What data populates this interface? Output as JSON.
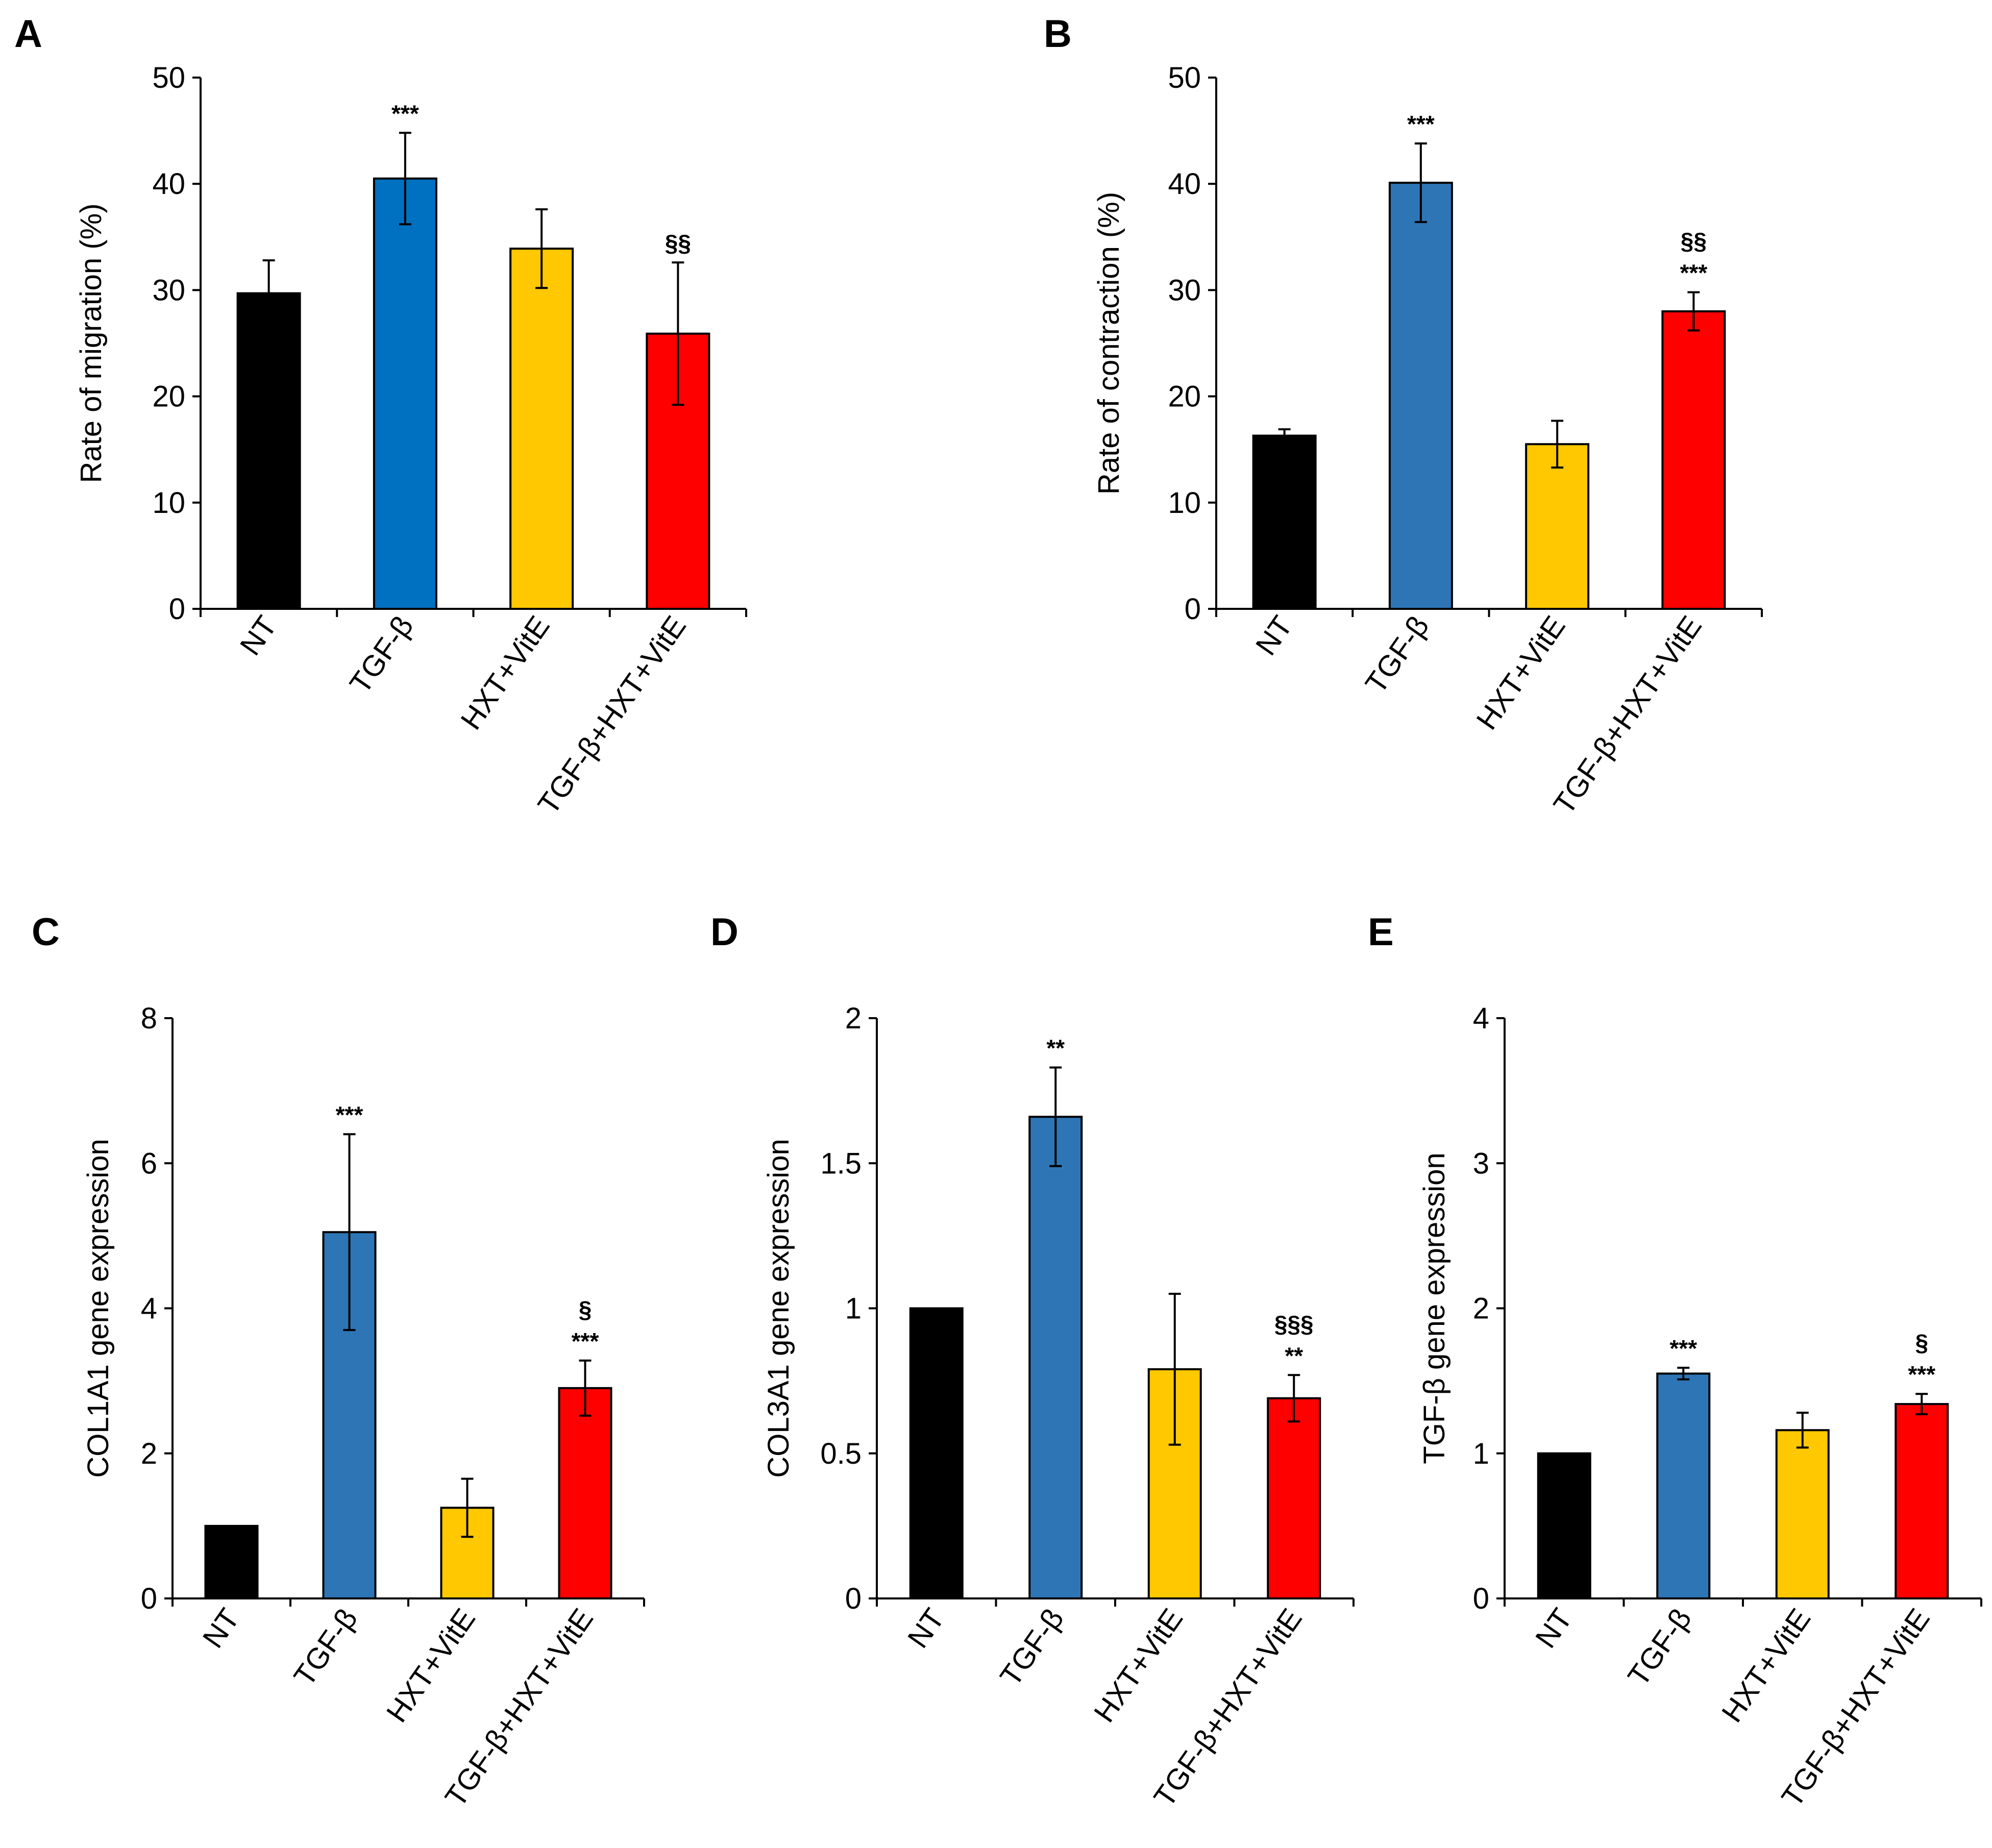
{
  "colors": {
    "NT": "#000000",
    "TGF-β": "#2e75b6",
    "HXT+VitE": "#ffc800",
    "TGF-β+HXT+VitE": "#ff0000"
  },
  "chart_data": [
    {
      "panel": "A",
      "type": "bar",
      "categories": [
        "NT",
        "TGF-β",
        "HXT+VitE",
        "TGF-β+HXT+VitE"
      ],
      "values": [
        29.7,
        40.5,
        33.9,
        25.9
      ],
      "errors": [
        3.1,
        4.3,
        3.7,
        6.7
      ],
      "annotations": [
        [],
        [
          "***"
        ],
        [],
        [
          "§§"
        ]
      ],
      "bar_colors": [
        "#000000",
        "#0070c0",
        "#ffc800",
        "#ff0000"
      ],
      "ylabel": "Rate of migration (%)",
      "ylim": [
        0,
        50
      ],
      "yticks": [
        0,
        10,
        20,
        30,
        40,
        50
      ],
      "ytick_labels": [
        "0",
        "10",
        "20",
        "30",
        "40",
        "50"
      ],
      "grid": false
    },
    {
      "panel": "B",
      "type": "bar",
      "categories": [
        "NT",
        "TGF-β",
        "HXT+VitE",
        "TGF-β+HXT+VitE"
      ],
      "values": [
        16.3,
        40.1,
        15.5,
        28.0
      ],
      "errors": [
        0.6,
        3.7,
        2.2,
        1.8
      ],
      "annotations": [
        [],
        [
          "***"
        ],
        [],
        [
          "***",
          "§§"
        ]
      ],
      "bar_colors": [
        "#000000",
        "#2e75b6",
        "#ffc800",
        "#ff0000"
      ],
      "ylabel": "Rate of contraction  (%)",
      "ylim": [
        0,
        50
      ],
      "yticks": [
        0,
        10,
        20,
        30,
        40,
        50
      ],
      "ytick_labels": [
        "0",
        "10",
        "20",
        "30",
        "40",
        "50"
      ],
      "grid": false
    },
    {
      "panel": "C",
      "type": "bar",
      "categories": [
        "NT",
        "TGF-β",
        "HXT+VitE",
        "TGF-β+HXT+VitE"
      ],
      "values": [
        1.0,
        5.05,
        1.25,
        2.9
      ],
      "errors": [
        0,
        1.35,
        0.4,
        0.38
      ],
      "annotations": [
        [],
        [
          "***"
        ],
        [],
        [
          "***",
          "§"
        ]
      ],
      "bar_colors": [
        "#000000",
        "#2e75b6",
        "#ffc800",
        "#ff0000"
      ],
      "ylabel": "COL1A1  gene expression",
      "ylim": [
        0,
        8
      ],
      "yticks": [
        0,
        2,
        4,
        6,
        8
      ],
      "ytick_labels": [
        "0",
        "2",
        "4",
        "6",
        "8"
      ],
      "grid": false
    },
    {
      "panel": "D",
      "type": "bar",
      "categories": [
        "NT",
        "TGF-β",
        "HXT+VitE",
        "TGF-β+HXT+VitE"
      ],
      "values": [
        1.0,
        1.66,
        0.79,
        0.69
      ],
      "errors": [
        0,
        0.17,
        0.26,
        0.08
      ],
      "annotations": [
        [],
        [
          "**"
        ],
        [],
        [
          "**",
          "§§§"
        ]
      ],
      "bar_colors": [
        "#000000",
        "#2e75b6",
        "#ffc800",
        "#ff0000"
      ],
      "ylabel": "COL3A1  gene expression",
      "ylim": [
        0,
        2
      ],
      "yticks": [
        0,
        0.5,
        1,
        1.5,
        2
      ],
      "ytick_labels": [
        "0",
        "0.5",
        "1",
        "1.5",
        "2"
      ],
      "grid": false
    },
    {
      "panel": "E",
      "type": "bar",
      "categories": [
        "NT",
        "TGF-β",
        "HXT+VitE",
        "TGF-β+HXT+VitE"
      ],
      "values": [
        1.0,
        1.55,
        1.16,
        1.34
      ],
      "errors": [
        0,
        0.04,
        0.12,
        0.07
      ],
      "annotations": [
        [],
        [
          "***"
        ],
        [],
        [
          "***",
          "§"
        ]
      ],
      "bar_colors": [
        "#000000",
        "#2e75b6",
        "#ffc800",
        "#ff0000"
      ],
      "ylabel": "TGF-β gene expression",
      "ylim": [
        0,
        4
      ],
      "yticks": [
        0,
        1,
        2,
        3,
        4
      ],
      "ytick_labels": [
        "0",
        "1",
        "2",
        "3",
        "4"
      ],
      "grid": false
    }
  ]
}
